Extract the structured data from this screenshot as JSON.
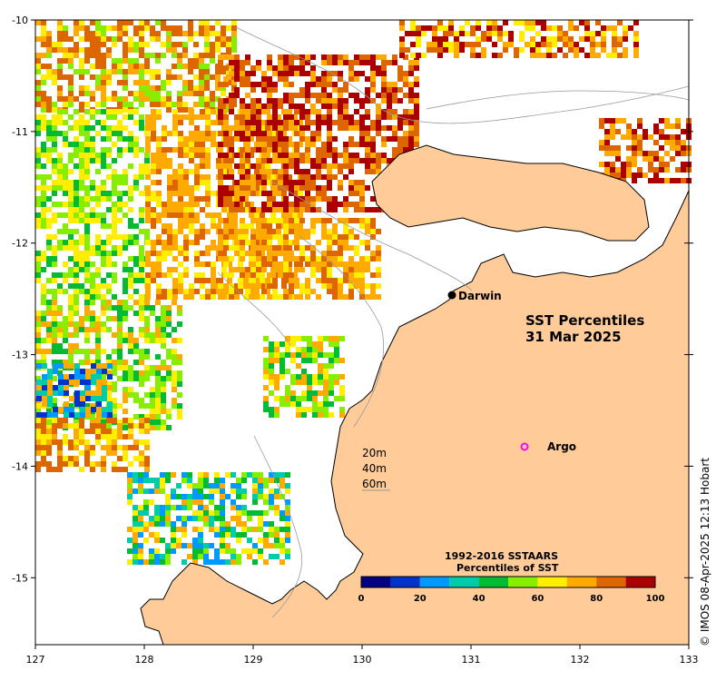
{
  "map": {
    "title_line1": "SST Percentiles",
    "title_line2": "31 Mar 2025",
    "x_ticks": [
      "127",
      "128",
      "129",
      "130",
      "131",
      "132",
      "133"
    ],
    "y_ticks": [
      "-10",
      "-11",
      "-12",
      "-13",
      "-14",
      "-15"
    ],
    "x_range": [
      127,
      133
    ],
    "y_range": [
      -15.6,
      -10
    ],
    "places": [
      {
        "name": "Darwin",
        "lon": 130.84,
        "lat": -12.46,
        "marker": "filled-dot"
      },
      {
        "name": "Argo",
        "lon": 131.5,
        "lat": -13.81,
        "marker": "magenta-circle"
      }
    ],
    "depth_contours": [
      "20m",
      "40m",
      "60m"
    ],
    "land_color": "#FFCC99",
    "no_data_color": "#FFFFFF"
  },
  "colorbar": {
    "title_line1": "1992-2016 SSTAARS",
    "title_line2": "Percentiles of SST",
    "ticks": [
      "0",
      "20",
      "40",
      "60",
      "80",
      "100"
    ],
    "colors": [
      "#000080",
      "#0033CC",
      "#0099FF",
      "#00CCAA",
      "#00BB33",
      "#88EE00",
      "#FFEE00",
      "#FFAA00",
      "#DD6600",
      "#AA0000"
    ]
  },
  "footer": {
    "copyright": "© IMOS 08-Apr-2025 12:13 Hobart"
  }
}
